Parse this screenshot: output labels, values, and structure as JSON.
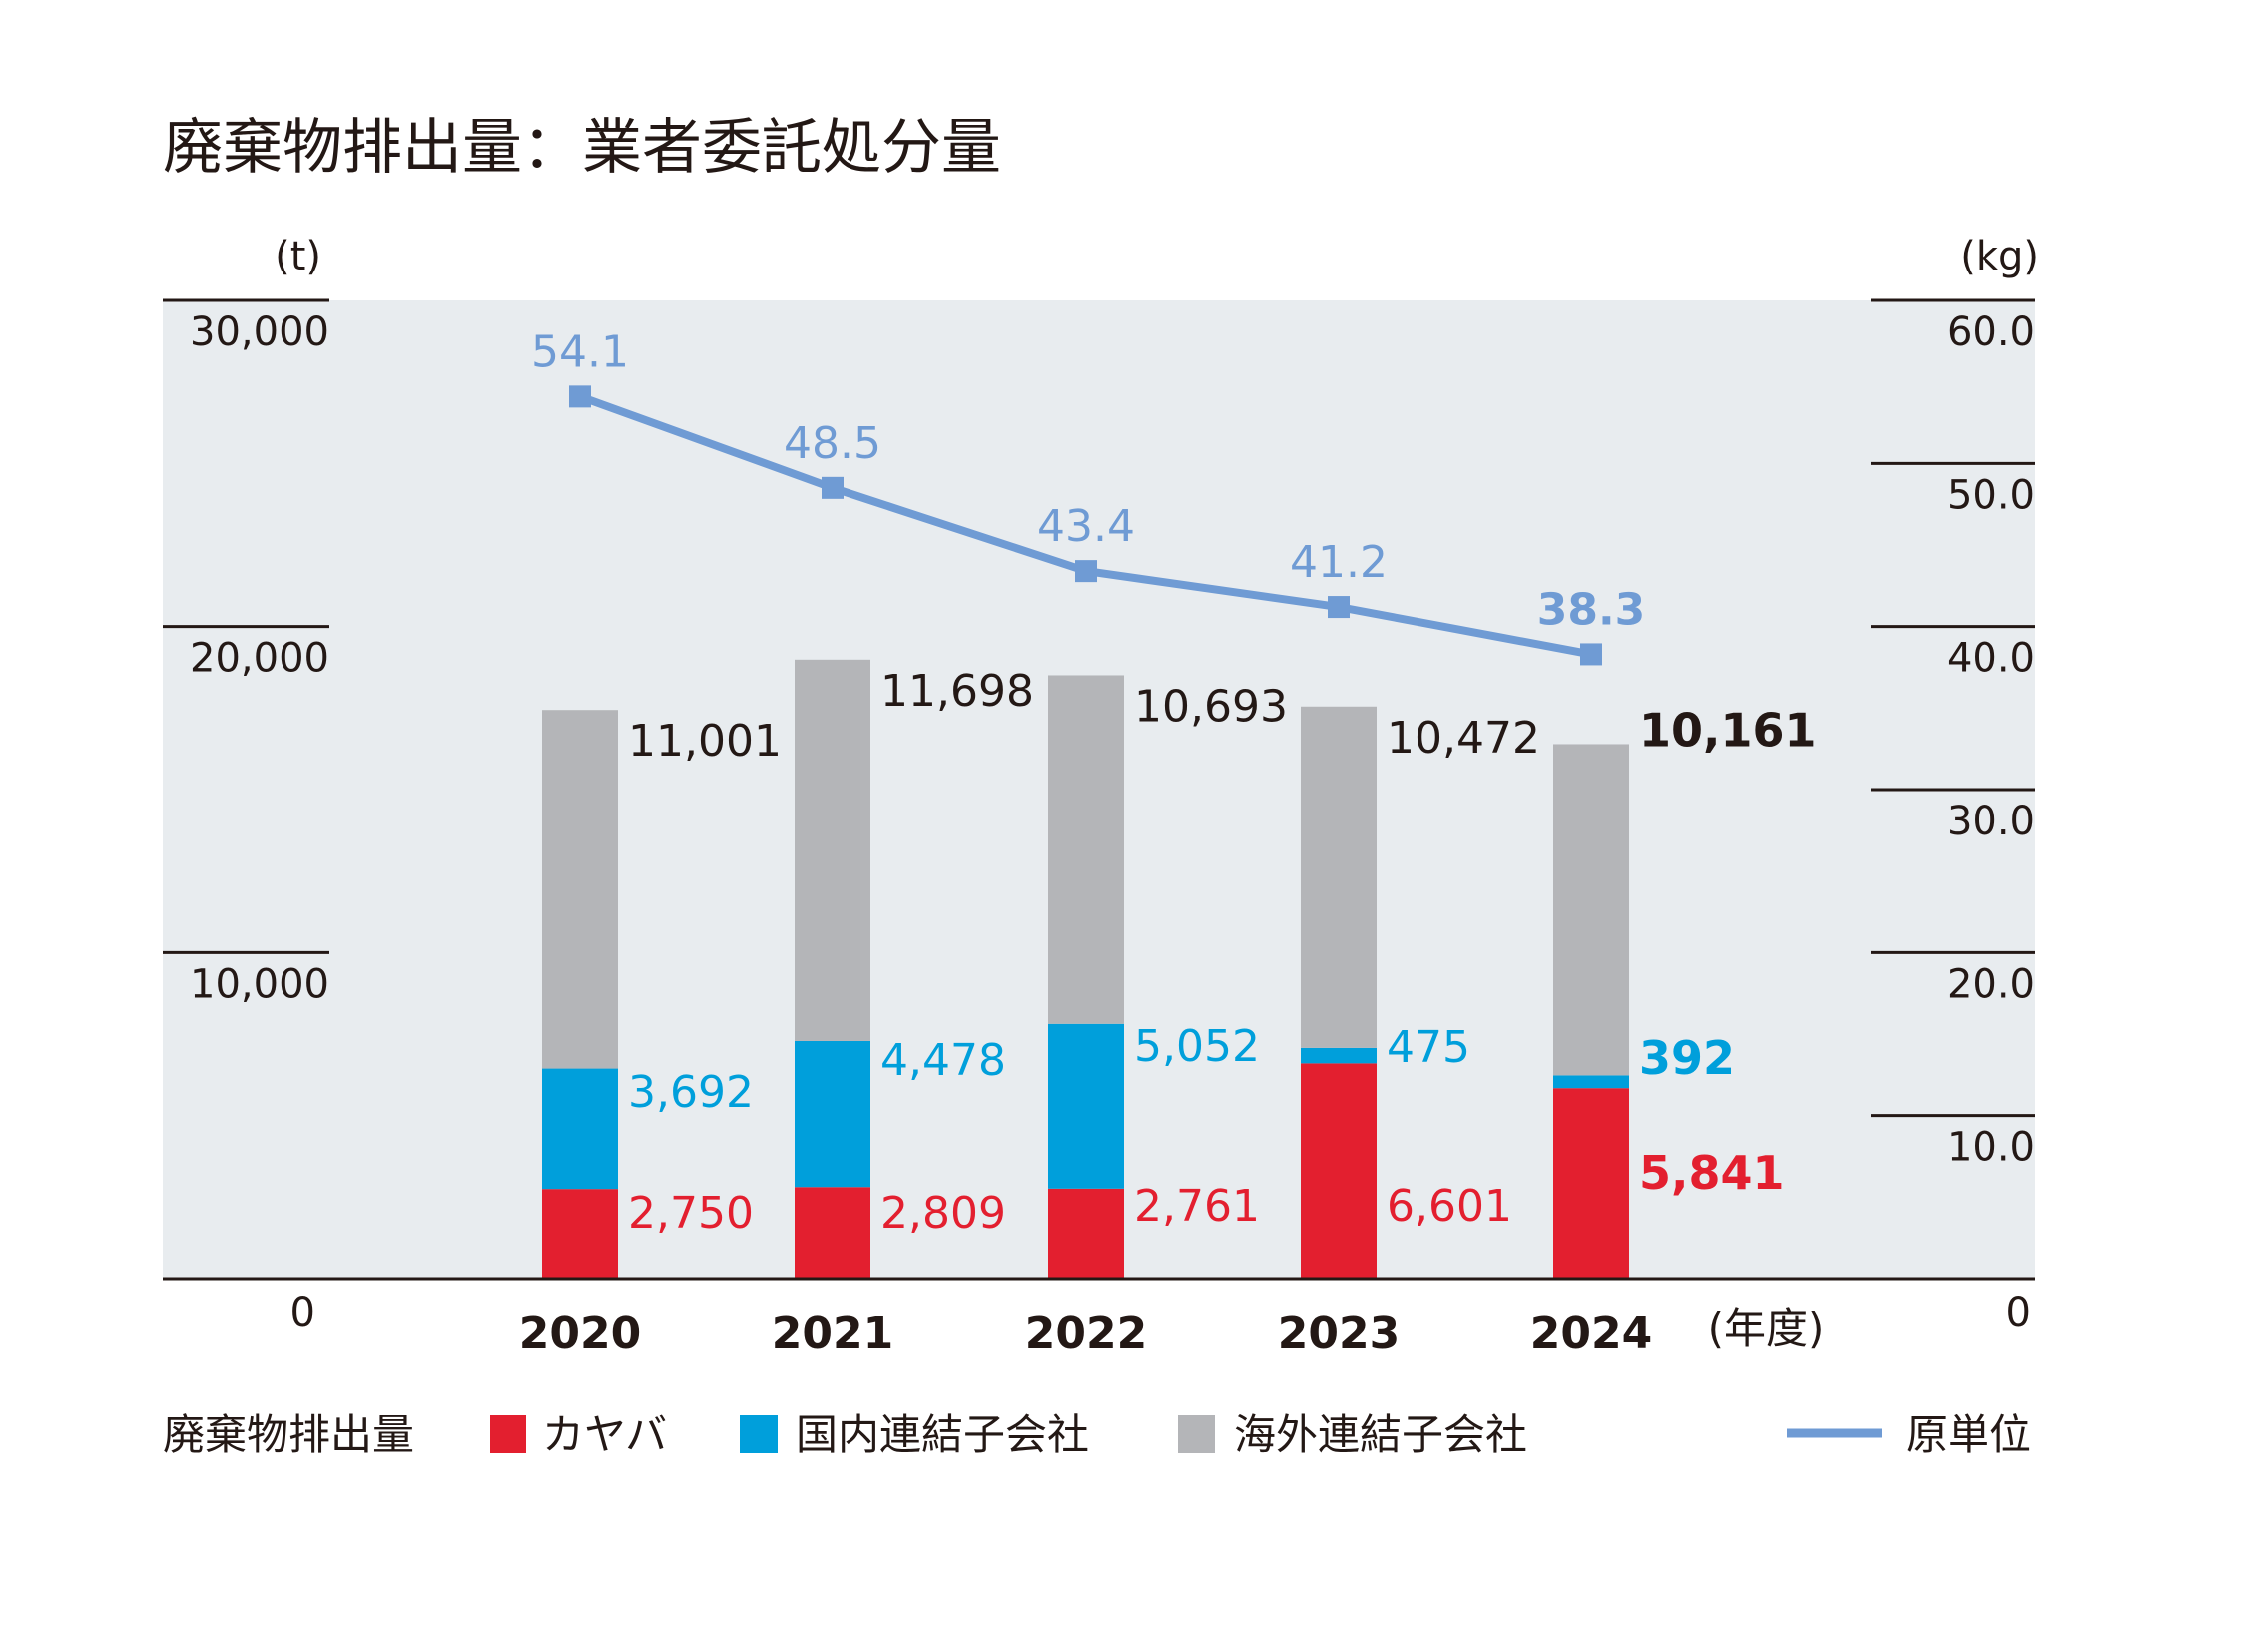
{
  "chart_data": {
    "type": "bar",
    "title": "廃棄物排出量：業者委託処分量",
    "left_unit": "(t)",
    "right_unit": "(kg)",
    "x_unit": "(年度)",
    "categories": [
      "2020",
      "2021",
      "2022",
      "2023",
      "2024"
    ],
    "ylim_left": [
      0,
      30000
    ],
    "ylim_right": [
      0,
      60
    ],
    "left_ticks": [
      "0",
      "10,000",
      "20,000",
      "30,000"
    ],
    "right_ticks": [
      "0",
      "10.0",
      "20.0",
      "30.0",
      "40.0",
      "50.0",
      "60.0"
    ],
    "legend_prefix": "廃棄物排出量",
    "legend_placement": "bottom",
    "series": [
      {
        "name": "カヤバ",
        "kind": "bar",
        "color": "#e31f2f",
        "values": [
          2750,
          2809,
          2761,
          6601,
          5841
        ],
        "labels": [
          "2,750",
          "2,809",
          "2,761",
          "6,601",
          "5,841"
        ]
      },
      {
        "name": "国内連結子会社",
        "kind": "bar",
        "color": "#009fdb",
        "values": [
          3692,
          4478,
          5052,
          475,
          392
        ],
        "labels": [
          "3,692",
          "4,478",
          "5,052",
          "475",
          "392"
        ]
      },
      {
        "name": "海外連結子会社",
        "kind": "bar",
        "color": "#b4b5b8",
        "values": [
          11001,
          11698,
          10693,
          10472,
          10161
        ],
        "labels": [
          "11,001",
          "11,698",
          "10,693",
          "10,472",
          "10,161"
        ]
      },
      {
        "name": "原単位",
        "kind": "line",
        "axis": "right",
        "color": "#6f9bd4",
        "values": [
          54.1,
          48.5,
          43.4,
          41.2,
          38.3
        ],
        "labels": [
          "54.1",
          "48.5",
          "43.4",
          "41.2",
          "38.3"
        ]
      }
    ],
    "highlight_category": "2024",
    "plot_background": "#e8ecef",
    "grid": false
  }
}
